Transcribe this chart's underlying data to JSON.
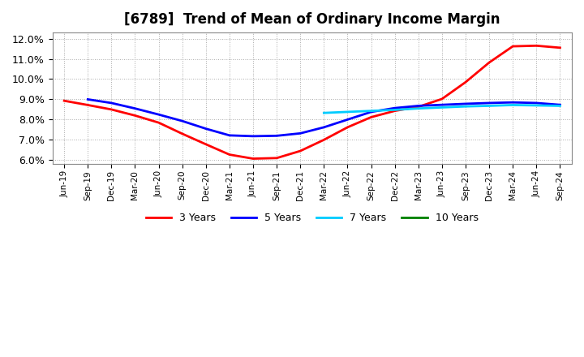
{
  "title": "[6789]  Trend of Mean of Ordinary Income Margin",
  "title_fontsize": 12,
  "background_color": "#ffffff",
  "plot_bg_color": "#ffffff",
  "grid_color": "#aaaaaa",
  "ylim": [
    0.058,
    0.123
  ],
  "yticks": [
    0.06,
    0.07,
    0.08,
    0.09,
    0.1,
    0.11,
    0.12
  ],
  "series": {
    "3 Years": {
      "color": "#ff0000",
      "linewidth": 2.0,
      "x": [
        0,
        1,
        2,
        3,
        4,
        5,
        6,
        7,
        8,
        9,
        10,
        11,
        12,
        13,
        14,
        15,
        16,
        17,
        18,
        19,
        20,
        21
      ],
      "values": [
        0.0893,
        0.0872,
        0.085,
        0.082,
        0.0785,
        0.073,
        0.0678,
        0.0627,
        0.0607,
        0.061,
        0.0645,
        0.07,
        0.0762,
        0.0812,
        0.0843,
        0.0863,
        0.0902,
        0.0985,
        0.1082,
        0.1162,
        0.1165,
        0.1155
      ]
    },
    "5 Years": {
      "color": "#0000ff",
      "linewidth": 2.0,
      "x": [
        1,
        2,
        3,
        4,
        5,
        6,
        7,
        8,
        9,
        10,
        11,
        12,
        13,
        14,
        15,
        16,
        17,
        18,
        19,
        20,
        21
      ],
      "values": [
        0.09,
        0.0882,
        0.0855,
        0.0825,
        0.0793,
        0.0755,
        0.0722,
        0.0718,
        0.072,
        0.0732,
        0.0762,
        0.08,
        0.0838,
        0.0857,
        0.0868,
        0.0873,
        0.0878,
        0.0882,
        0.0885,
        0.0882,
        0.0873
      ]
    },
    "7 Years": {
      "color": "#00ccff",
      "linewidth": 2.0,
      "x": [
        11,
        12,
        13,
        14,
        15,
        16,
        17,
        18,
        19,
        20,
        21
      ],
      "values": [
        0.0833,
        0.0838,
        0.0843,
        0.0848,
        0.0855,
        0.086,
        0.0865,
        0.0868,
        0.0872,
        0.087,
        0.0868
      ]
    },
    "10 Years": {
      "color": "#008000",
      "linewidth": 2.0,
      "x": [],
      "values": []
    }
  },
  "xtick_labels": [
    "Jun-19",
    "Sep-19",
    "Dec-19",
    "Mar-20",
    "Jun-20",
    "Sep-20",
    "Dec-20",
    "Mar-21",
    "Jun-21",
    "Sep-21",
    "Dec-21",
    "Mar-22",
    "Jun-22",
    "Sep-22",
    "Dec-22",
    "Mar-23",
    "Jun-23",
    "Sep-23",
    "Dec-23",
    "Mar-24",
    "Jun-24",
    "Sep-24"
  ],
  "legend_labels": [
    "3 Years",
    "5 Years",
    "7 Years",
    "10 Years"
  ],
  "legend_colors": [
    "#ff0000",
    "#0000ff",
    "#00ccff",
    "#008000"
  ]
}
